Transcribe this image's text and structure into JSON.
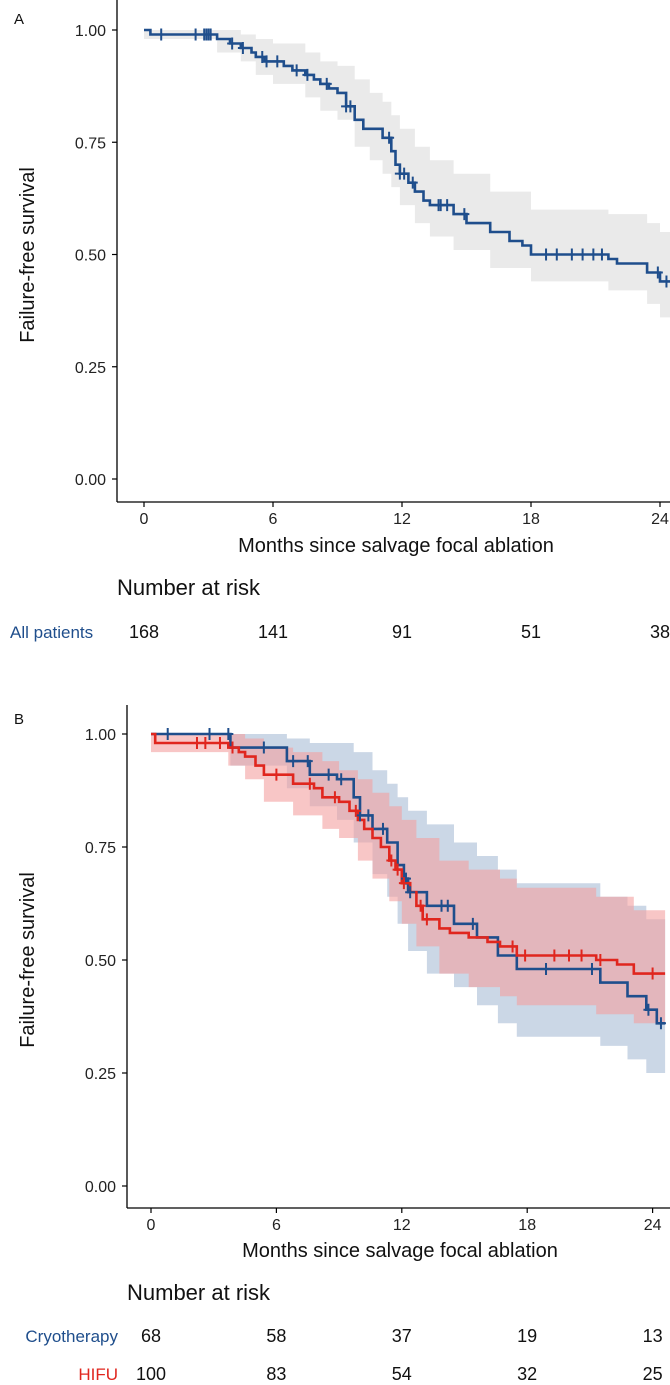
{
  "chart_data": [
    {
      "type": "line",
      "panel_label": "A",
      "xlabel": "Months since salvage focal ablation",
      "ylabel": "Failure-free survival",
      "xticks": [
        0,
        6,
        12,
        18,
        24
      ],
      "xtick_labels": [
        "0",
        "6",
        "12",
        "18",
        "24"
      ],
      "yticks": [
        0,
        0.25,
        0.5,
        0.75,
        1.0
      ],
      "ytick_labels": [
        "0.00",
        "0.25",
        "0.50",
        "0.75",
        "1.00"
      ],
      "xlim": [
        -0.6,
        25
      ],
      "ylim": [
        -0.03,
        1.06
      ],
      "grid": false,
      "series": [
        {
          "name": "All patients",
          "color": "#1f4e8c",
          "band_color": "#e6e6e6",
          "steps": [
            [
              0,
              1.0
            ],
            [
              0.3,
              0.99
            ],
            [
              3.4,
              0.98
            ],
            [
              4.0,
              0.97
            ],
            [
              4.5,
              0.96
            ],
            [
              5.0,
              0.95
            ],
            [
              5.2,
              0.94
            ],
            [
              5.6,
              0.93
            ],
            [
              6.5,
              0.92
            ],
            [
              6.9,
              0.91
            ],
            [
              7.5,
              0.9
            ],
            [
              7.9,
              0.89
            ],
            [
              8.2,
              0.88
            ],
            [
              8.6,
              0.87
            ],
            [
              9.0,
              0.86
            ],
            [
              9.4,
              0.83
            ],
            [
              9.8,
              0.8
            ],
            [
              10.2,
              0.78
            ],
            [
              11.1,
              0.76
            ],
            [
              11.5,
              0.73
            ],
            [
              11.7,
              0.7
            ],
            [
              11.9,
              0.68
            ],
            [
              12.3,
              0.66
            ],
            [
              12.6,
              0.64
            ],
            [
              13.0,
              0.62
            ],
            [
              13.3,
              0.61
            ],
            [
              14.4,
              0.59
            ],
            [
              15.0,
              0.57
            ],
            [
              16.1,
              0.55
            ],
            [
              17.0,
              0.53
            ],
            [
              17.6,
              0.52
            ],
            [
              18.0,
              0.5
            ],
            [
              21.6,
              0.49
            ],
            [
              22.0,
              0.48
            ],
            [
              23.4,
              0.46
            ],
            [
              24.0,
              0.44
            ],
            [
              25.0,
              0.43
            ]
          ],
          "upper": [
            [
              0,
              1.0
            ],
            [
              3.4,
              1.0
            ],
            [
              4.5,
              0.99
            ],
            [
              5.2,
              0.98
            ],
            [
              6.0,
              0.97
            ],
            [
              7.5,
              0.95
            ],
            [
              8.2,
              0.93
            ],
            [
              9.0,
              0.92
            ],
            [
              9.8,
              0.89
            ],
            [
              10.5,
              0.86
            ],
            [
              11.1,
              0.84
            ],
            [
              11.5,
              0.81
            ],
            [
              11.9,
              0.78
            ],
            [
              12.6,
              0.74
            ],
            [
              13.3,
              0.71
            ],
            [
              14.4,
              0.68
            ],
            [
              16.1,
              0.64
            ],
            [
              18.0,
              0.6
            ],
            [
              21.6,
              0.59
            ],
            [
              23.4,
              0.57
            ],
            [
              24.0,
              0.55
            ],
            [
              25.0,
              0.53
            ]
          ],
          "lower": [
            [
              0,
              0.98
            ],
            [
              3.4,
              0.95
            ],
            [
              4.5,
              0.93
            ],
            [
              5.2,
              0.9
            ],
            [
              6.0,
              0.88
            ],
            [
              7.5,
              0.85
            ],
            [
              8.2,
              0.82
            ],
            [
              9.0,
              0.8
            ],
            [
              9.8,
              0.74
            ],
            [
              10.5,
              0.71
            ],
            [
              11.1,
              0.68
            ],
            [
              11.5,
              0.65
            ],
            [
              11.9,
              0.61
            ],
            [
              12.6,
              0.57
            ],
            [
              13.3,
              0.54
            ],
            [
              14.4,
              0.51
            ],
            [
              16.1,
              0.47
            ],
            [
              18.0,
              0.44
            ],
            [
              21.6,
              0.42
            ],
            [
              23.4,
              0.39
            ],
            [
              24.0,
              0.36
            ],
            [
              25.0,
              0.35
            ]
          ],
          "censor": [
            0.8,
            2.4,
            2.8,
            2.9,
            3.0,
            3.1,
            4.1,
            4.6,
            5.5,
            5.7,
            6.2,
            7.1,
            7.6,
            8.5,
            9.4,
            9.6,
            11.4,
            11.9,
            12.1,
            12.5,
            13.7,
            13.8,
            14.1,
            14.9,
            18.7,
            19.2,
            19.9,
            20.4,
            20.9,
            21.3,
            23.9,
            24.3
          ]
        }
      ],
      "risk_table": {
        "title": "Number at risk",
        "rows": [
          {
            "label": "All patients",
            "label_color": "#1f4e8c",
            "values": [
              "168",
              "141",
              "91",
              "51",
              "38"
            ]
          }
        ]
      }
    },
    {
      "type": "line",
      "panel_label": "B",
      "xlabel": "Months since salvage focal ablation",
      "ylabel": "Failure-free survival",
      "xticks": [
        0,
        6,
        12,
        18,
        24
      ],
      "xtick_labels": [
        "0",
        "6",
        "12",
        "18",
        "24"
      ],
      "yticks": [
        0,
        0.25,
        0.5,
        0.75,
        1.0
      ],
      "ytick_labels": [
        "0.00",
        "0.25",
        "0.50",
        "0.75",
        "1.00"
      ],
      "xlim": [
        -0.6,
        24.6
      ],
      "ylim": [
        -0.03,
        1.06
      ],
      "grid": false,
      "series": [
        {
          "name": "Cryotherapy",
          "color": "#1f4e8c",
          "band_color": "#a9bdd6",
          "steps": [
            [
              0,
              1.0
            ],
            [
              3.8,
              0.97
            ],
            [
              6.5,
              0.94
            ],
            [
              7.6,
              0.91
            ],
            [
              8.9,
              0.9
            ],
            [
              9.7,
              0.86
            ],
            [
              10.0,
              0.82
            ],
            [
              10.6,
              0.79
            ],
            [
              11.3,
              0.76
            ],
            [
              11.8,
              0.71
            ],
            [
              12.1,
              0.68
            ],
            [
              12.3,
              0.65
            ],
            [
              13.2,
              0.62
            ],
            [
              14.5,
              0.58
            ],
            [
              15.6,
              0.55
            ],
            [
              16.6,
              0.51
            ],
            [
              17.5,
              0.48
            ],
            [
              21.5,
              0.45
            ],
            [
              22.8,
              0.42
            ],
            [
              23.7,
              0.39
            ],
            [
              24.2,
              0.36
            ],
            [
              24.6,
              0.36
            ]
          ],
          "upper": [
            [
              0,
              1.0
            ],
            [
              3.8,
              1.0
            ],
            [
              6.5,
              0.99
            ],
            [
              7.6,
              0.98
            ],
            [
              8.9,
              0.98
            ],
            [
              9.7,
              0.96
            ],
            [
              10.6,
              0.92
            ],
            [
              11.3,
              0.89
            ],
            [
              11.8,
              0.86
            ],
            [
              12.3,
              0.83
            ],
            [
              13.2,
              0.8
            ],
            [
              14.5,
              0.76
            ],
            [
              15.6,
              0.73
            ],
            [
              16.6,
              0.7
            ],
            [
              17.5,
              0.67
            ],
            [
              21.5,
              0.64
            ],
            [
              22.8,
              0.62
            ],
            [
              23.7,
              0.59
            ],
            [
              24.6,
              0.56
            ]
          ],
          "lower": [
            [
              0,
              1.0
            ],
            [
              3.8,
              0.93
            ],
            [
              6.5,
              0.88
            ],
            [
              7.6,
              0.84
            ],
            [
              8.9,
              0.81
            ],
            [
              9.7,
              0.76
            ],
            [
              10.6,
              0.69
            ],
            [
              11.3,
              0.64
            ],
            [
              11.8,
              0.58
            ],
            [
              12.3,
              0.52
            ],
            [
              13.2,
              0.47
            ],
            [
              14.5,
              0.44
            ],
            [
              15.6,
              0.4
            ],
            [
              16.6,
              0.36
            ],
            [
              17.5,
              0.33
            ],
            [
              21.5,
              0.31
            ],
            [
              22.8,
              0.28
            ],
            [
              23.7,
              0.25
            ],
            [
              24.6,
              0.23
            ]
          ],
          "censor": [
            0.8,
            2.8,
            3.7,
            5.4,
            6.8,
            7.5,
            8.5,
            9.1,
            10.0,
            10.4,
            11.1,
            12.2,
            12.4,
            13.9,
            14.2,
            15.4,
            18.9,
            21.1,
            23.8,
            24.4
          ]
        },
        {
          "name": "HIFU",
          "color": "#e0261e",
          "band_color": "#f4a0a0",
          "steps": [
            [
              0,
              1.0
            ],
            [
              0.2,
              0.98
            ],
            [
              3.7,
              0.97
            ],
            [
              4.2,
              0.96
            ],
            [
              4.5,
              0.95
            ],
            [
              5.0,
              0.93
            ],
            [
              5.4,
              0.91
            ],
            [
              6.8,
              0.89
            ],
            [
              7.8,
              0.88
            ],
            [
              8.2,
              0.86
            ],
            [
              9.0,
              0.85
            ],
            [
              9.5,
              0.83
            ],
            [
              9.9,
              0.81
            ],
            [
              10.2,
              0.79
            ],
            [
              10.6,
              0.77
            ],
            [
              11.0,
              0.75
            ],
            [
              11.4,
              0.72
            ],
            [
              11.7,
              0.7
            ],
            [
              12.0,
              0.67
            ],
            [
              12.4,
              0.65
            ],
            [
              12.7,
              0.62
            ],
            [
              13.0,
              0.59
            ],
            [
              13.8,
              0.57
            ],
            [
              14.3,
              0.56
            ],
            [
              15.2,
              0.55
            ],
            [
              16.1,
              0.54
            ],
            [
              16.7,
              0.53
            ],
            [
              17.5,
              0.51
            ],
            [
              21.3,
              0.5
            ],
            [
              22.3,
              0.49
            ],
            [
              23.1,
              0.47
            ],
            [
              24.6,
              0.47
            ]
          ],
          "upper": [
            [
              0,
              1.0
            ],
            [
              3.7,
              1.0
            ],
            [
              4.5,
              0.99
            ],
            [
              5.4,
              0.97
            ],
            [
              6.8,
              0.96
            ],
            [
              8.2,
              0.94
            ],
            [
              9.0,
              0.92
            ],
            [
              9.9,
              0.9
            ],
            [
              10.6,
              0.87
            ],
            [
              11.4,
              0.84
            ],
            [
              12.0,
              0.81
            ],
            [
              12.7,
              0.77
            ],
            [
              13.8,
              0.72
            ],
            [
              15.2,
              0.7
            ],
            [
              16.7,
              0.68
            ],
            [
              17.5,
              0.66
            ],
            [
              21.3,
              0.64
            ],
            [
              23.1,
              0.61
            ],
            [
              24.6,
              0.6
            ]
          ],
          "lower": [
            [
              0,
              0.96
            ],
            [
              3.7,
              0.93
            ],
            [
              4.5,
              0.9
            ],
            [
              5.4,
              0.85
            ],
            [
              6.8,
              0.82
            ],
            [
              8.2,
              0.79
            ],
            [
              9.0,
              0.77
            ],
            [
              9.9,
              0.72
            ],
            [
              10.6,
              0.68
            ],
            [
              11.4,
              0.63
            ],
            [
              12.0,
              0.58
            ],
            [
              12.7,
              0.53
            ],
            [
              13.8,
              0.47
            ],
            [
              15.2,
              0.44
            ],
            [
              16.7,
              0.42
            ],
            [
              17.5,
              0.4
            ],
            [
              21.3,
              0.38
            ],
            [
              23.1,
              0.36
            ],
            [
              24.6,
              0.35
            ]
          ],
          "censor": [
            2.2,
            2.6,
            3.3,
            3.9,
            6.0,
            7.6,
            8.8,
            9.8,
            11.5,
            11.8,
            12.1,
            12.9,
            13.2,
            17.3,
            17.9,
            19.3,
            20.0,
            20.6,
            21.5,
            24.0
          ]
        }
      ],
      "risk_table": {
        "title": "Number at risk",
        "rows": [
          {
            "label": "Cryotherapy",
            "label_color": "#1f4e8c",
            "values": [
              "68",
              "58",
              "37",
              "19",
              "13"
            ]
          },
          {
            "label": "HIFU",
            "label_color": "#e0261e",
            "values": [
              "100",
              "83",
              "54",
              "32",
              "25"
            ]
          }
        ]
      }
    }
  ]
}
